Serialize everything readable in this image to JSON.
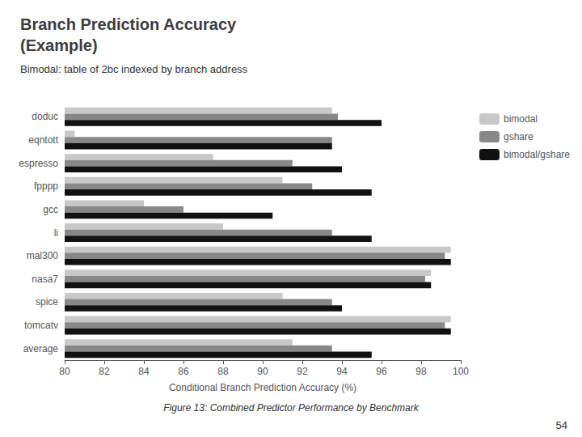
{
  "chart_data": {
    "type": "bar",
    "orientation": "horizontal",
    "title": "Branch Prediction Accuracy\n(Example)",
    "subtitle": "Bimodal: table of 2bc indexed by branch address",
    "x_label": "Conditional Branch Prediction Accuracy (%)",
    "categories": [
      "doduc",
      "eqntott",
      "espresso",
      "fpppp",
      "gcc",
      "li",
      "mal300",
      "nasa7",
      "spice",
      "tomcatv",
      "average"
    ],
    "series": [
      {
        "name": "bimodal",
        "color": "#c8c8c8",
        "values": [
          93.5,
          80.5,
          87.5,
          91.0,
          84.0,
          88.0,
          99.5,
          98.5,
          91.0,
          99.5,
          91.5
        ]
      },
      {
        "name": "gshare",
        "color": "#888888",
        "values": [
          93.8,
          93.5,
          91.5,
          92.5,
          86.0,
          93.5,
          99.2,
          98.2,
          93.5,
          99.2,
          93.5
        ]
      },
      {
        "name": "bimodal/gshare",
        "color": "#111111",
        "values": [
          96.0,
          93.5,
          94.0,
          95.5,
          90.5,
          95.5,
          99.5,
          98.5,
          94.0,
          99.5,
          95.5
        ]
      }
    ],
    "xlim": [
      80,
      100
    ],
    "xticks": [
      80,
      82,
      84,
      86,
      88,
      90,
      92,
      94,
      96,
      98,
      100
    ],
    "grid": false,
    "legend": "upper right",
    "annotations": [
      "Figure 13: Combined Predictor Performance by Benchmark",
      "54"
    ]
  }
}
